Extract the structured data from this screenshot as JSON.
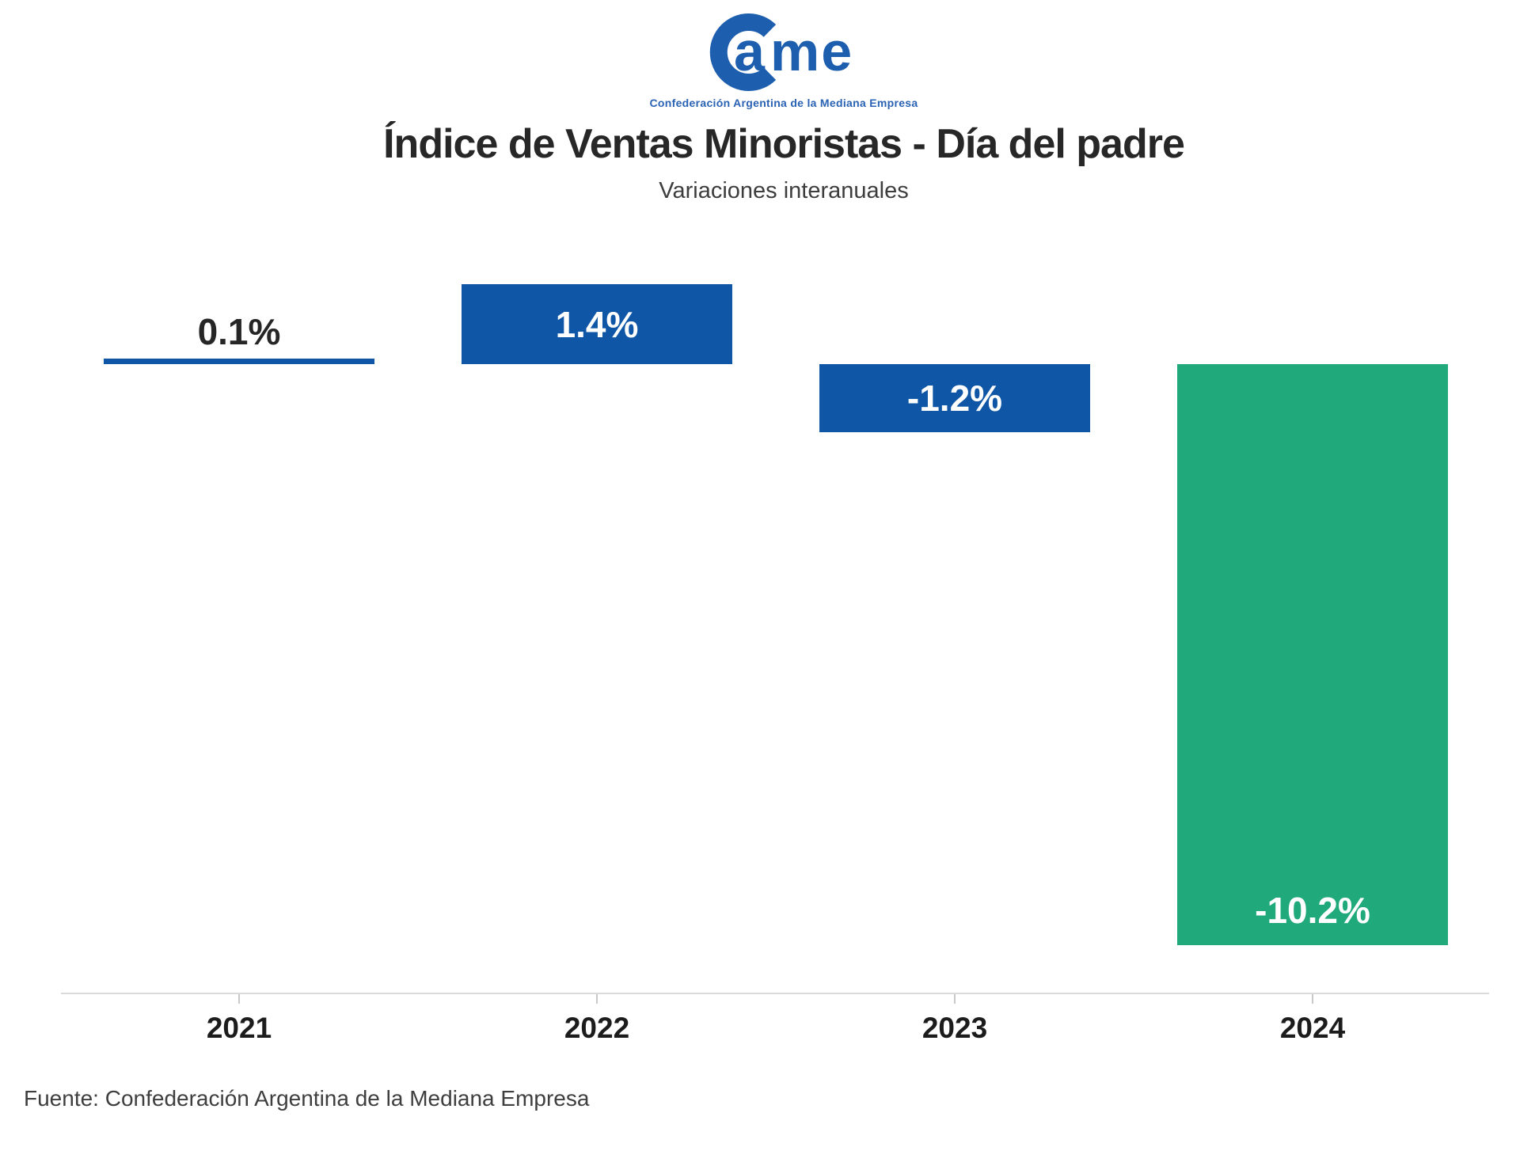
{
  "header": {
    "logo": {
      "wordmark_a": "a",
      "wordmark_me": "me",
      "tagline": "Confederación Argentina de la Mediana Empresa",
      "color": "#1d5fae"
    },
    "title": "Índice de Ventas Minoristas - Día del padre",
    "subtitle": "Variaciones interanuales"
  },
  "chart_data": {
    "type": "bar",
    "categories": [
      "2021",
      "2022",
      "2023",
      "2024"
    ],
    "values": [
      0.1,
      1.4,
      -1.2,
      -10.2
    ],
    "labels": [
      "0.1%",
      "1.4%",
      "-1.2%",
      "-10.2%"
    ],
    "title": "Índice de Ventas Minoristas - Día del padre",
    "subtitle": "Variaciones interanuales",
    "xlabel": "",
    "ylabel": "",
    "ylim": [
      -11,
      2
    ],
    "grid": false,
    "legend": false,
    "baseline": 0,
    "bar_colors": [
      "#0f57a6",
      "#0f57a6",
      "#0f57a6",
      "#20a97a"
    ],
    "label_colors": [
      "#262626",
      "#ffffff",
      "#ffffff",
      "#ffffff"
    ],
    "label_positions": [
      "above",
      "inside-center",
      "inside-center",
      "inside-bottom"
    ]
  },
  "footer": {
    "source": "Fuente: Confederación Argentina de la Mediana Empresa"
  }
}
